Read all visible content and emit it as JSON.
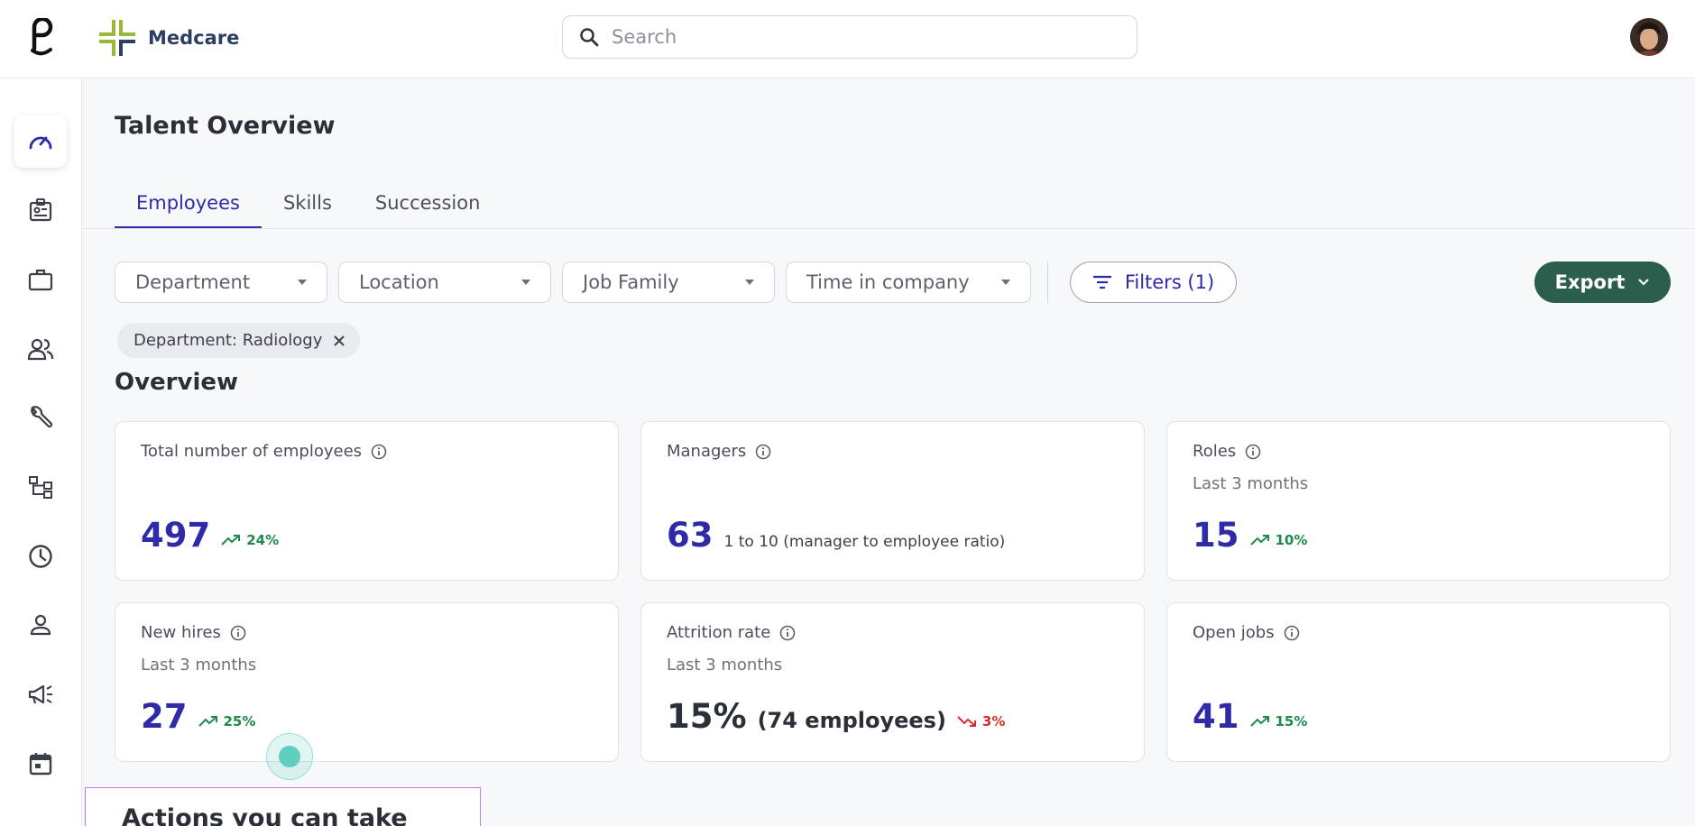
{
  "brand": {
    "name": "Medcare"
  },
  "search": {
    "placeholder": "Search"
  },
  "page": {
    "title": "Talent Overview"
  },
  "tabs": [
    {
      "label": "Employees",
      "active": true
    },
    {
      "label": "Skills",
      "active": false
    },
    {
      "label": "Succession",
      "active": false
    }
  ],
  "filters": {
    "department": "Department",
    "location": "Location",
    "job_family": "Job Family",
    "time_in_company": "Time in company",
    "filters_button": "Filters (1)",
    "export_button": "Export",
    "active_chip": "Department: Radiology"
  },
  "overview": {
    "title": "Overview",
    "cards": {
      "total": {
        "label": "Total number of employees",
        "value": "497",
        "trend": "24%"
      },
      "managers": {
        "label": "Managers",
        "value": "63",
        "note": "1 to 10 (manager to employee ratio)"
      },
      "roles": {
        "label": "Roles",
        "sub": "Last 3 months",
        "value": "15",
        "trend": "10%"
      },
      "new_hires": {
        "label": "New hires",
        "sub": "Last 3 months",
        "value": "27",
        "trend": "25%"
      },
      "attrition": {
        "label": "Attrition rate",
        "sub": "Last 3 months",
        "value": "15%",
        "note": "(74 employees)",
        "trend": "3%"
      },
      "open_jobs": {
        "label": "Open jobs",
        "value": "41",
        "trend": "15%"
      }
    }
  },
  "actions": {
    "title": "Actions you can take"
  },
  "colors": {
    "accent": "#2f2aa8",
    "export": "#2c5e4d",
    "up": "#1f8a4c",
    "down": "#d0312d"
  }
}
